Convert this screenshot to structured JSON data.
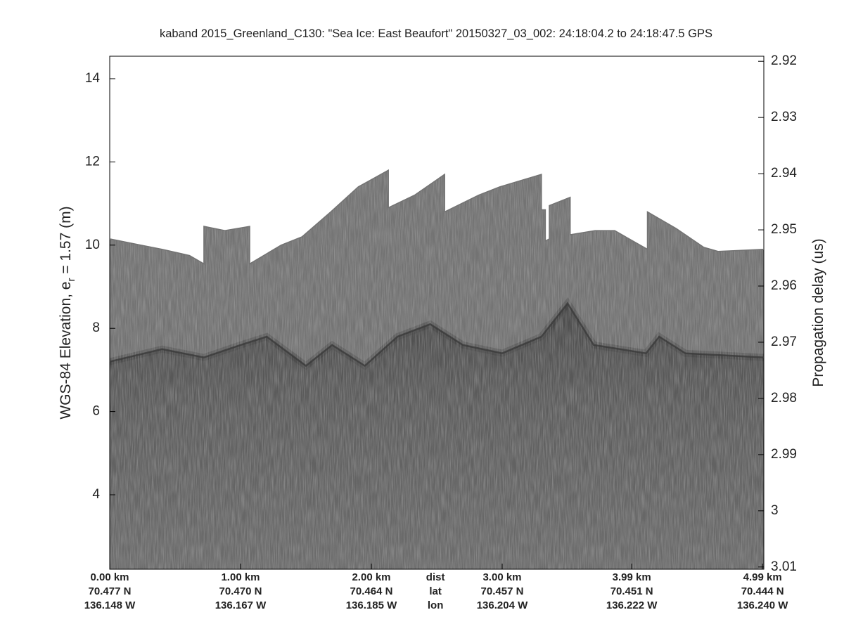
{
  "chart_data": {
    "type": "echogram",
    "title": "kaband 2015_Greenland_C130: \"Sea Ice: East Beaufort\"  20150327_03_002: 24:18:04.2 to 24:18:47.5 GPS",
    "ylabel": [
      "WGS-84 Elevation, e",
      "r",
      " = 1.57 (m)"
    ],
    "y2label": "Propagation delay (us)",
    "xlim": [
      0,
      5.0
    ],
    "ylim": [
      2.21,
      14.54
    ],
    "yticks": [
      4,
      6,
      8,
      10,
      12,
      14
    ],
    "y2lim": [
      3.0104,
      2.9191
    ],
    "y2ticks": [
      2.92,
      2.93,
      2.94,
      2.95,
      2.96,
      2.97,
      2.98,
      2.99,
      3,
      3.01
    ],
    "xticks": [
      {
        "value": 0,
        "label": "0.00 km"
      },
      {
        "value": 1.0,
        "label": "1.00 km"
      },
      {
        "value": 2.0,
        "label": "2.00 km"
      },
      {
        "value": 3.0,
        "label": "3.00 km"
      },
      {
        "value": 3.99,
        "label": "3.99 km"
      },
      {
        "value": 4.99,
        "label": "4.99 km"
      }
    ],
    "lat_labels": [
      "70.477 N",
      "70.470 N",
      "70.464 N",
      "70.457 N",
      "70.451 N",
      "70.444 N"
    ],
    "lon_labels": [
      "136.148 W",
      "136.167 W",
      "136.185 W",
      "136.204 W",
      "136.222 W",
      "136.240 W"
    ],
    "row_labels": [
      "dist",
      "lat",
      "lon"
    ],
    "row_labels_x": 2.49,
    "surface": {
      "x": [
        0,
        0.24,
        0.4,
        0.61,
        0.72,
        0.72,
        0.88,
        1.07,
        1.07,
        1.31,
        1.47,
        1.69,
        1.9,
        2.13,
        2.13,
        2.33,
        2.56,
        2.56,
        2.82,
        2.98,
        3.3,
        3.3,
        3.33,
        3.33,
        3.36,
        3.36,
        3.52,
        3.52,
        3.71,
        3.86,
        4.11,
        4.11,
        4.33,
        4.54,
        4.65,
        5.0
      ],
      "values": [
        10.15,
        10.0,
        9.9,
        9.75,
        9.55,
        10.45,
        10.35,
        10.45,
        9.55,
        10.0,
        10.2,
        10.8,
        11.4,
        11.8,
        10.9,
        11.2,
        11.7,
        10.8,
        11.2,
        11.4,
        11.7,
        10.85,
        10.85,
        10.1,
        10.15,
        10.95,
        11.15,
        10.25,
        10.35,
        10.35,
        9.9,
        10.8,
        10.4,
        9.95,
        9.85,
        9.9
      ],
      "color": "#737373"
    },
    "interface": {
      "x": [
        0,
        0.4,
        0.72,
        1.0,
        1.2,
        1.5,
        1.7,
        1.95,
        2.2,
        2.45,
        2.7,
        3.0,
        3.3,
        3.5,
        3.7,
        4.1,
        4.2,
        4.4,
        5.0
      ],
      "values": [
        7.2,
        7.5,
        7.3,
        7.6,
        7.8,
        7.1,
        7.6,
        7.1,
        7.8,
        8.1,
        7.6,
        7.4,
        7.8,
        8.6,
        7.6,
        7.4,
        7.8,
        7.4,
        7.3
      ],
      "color": "#3a3a3a"
    }
  }
}
